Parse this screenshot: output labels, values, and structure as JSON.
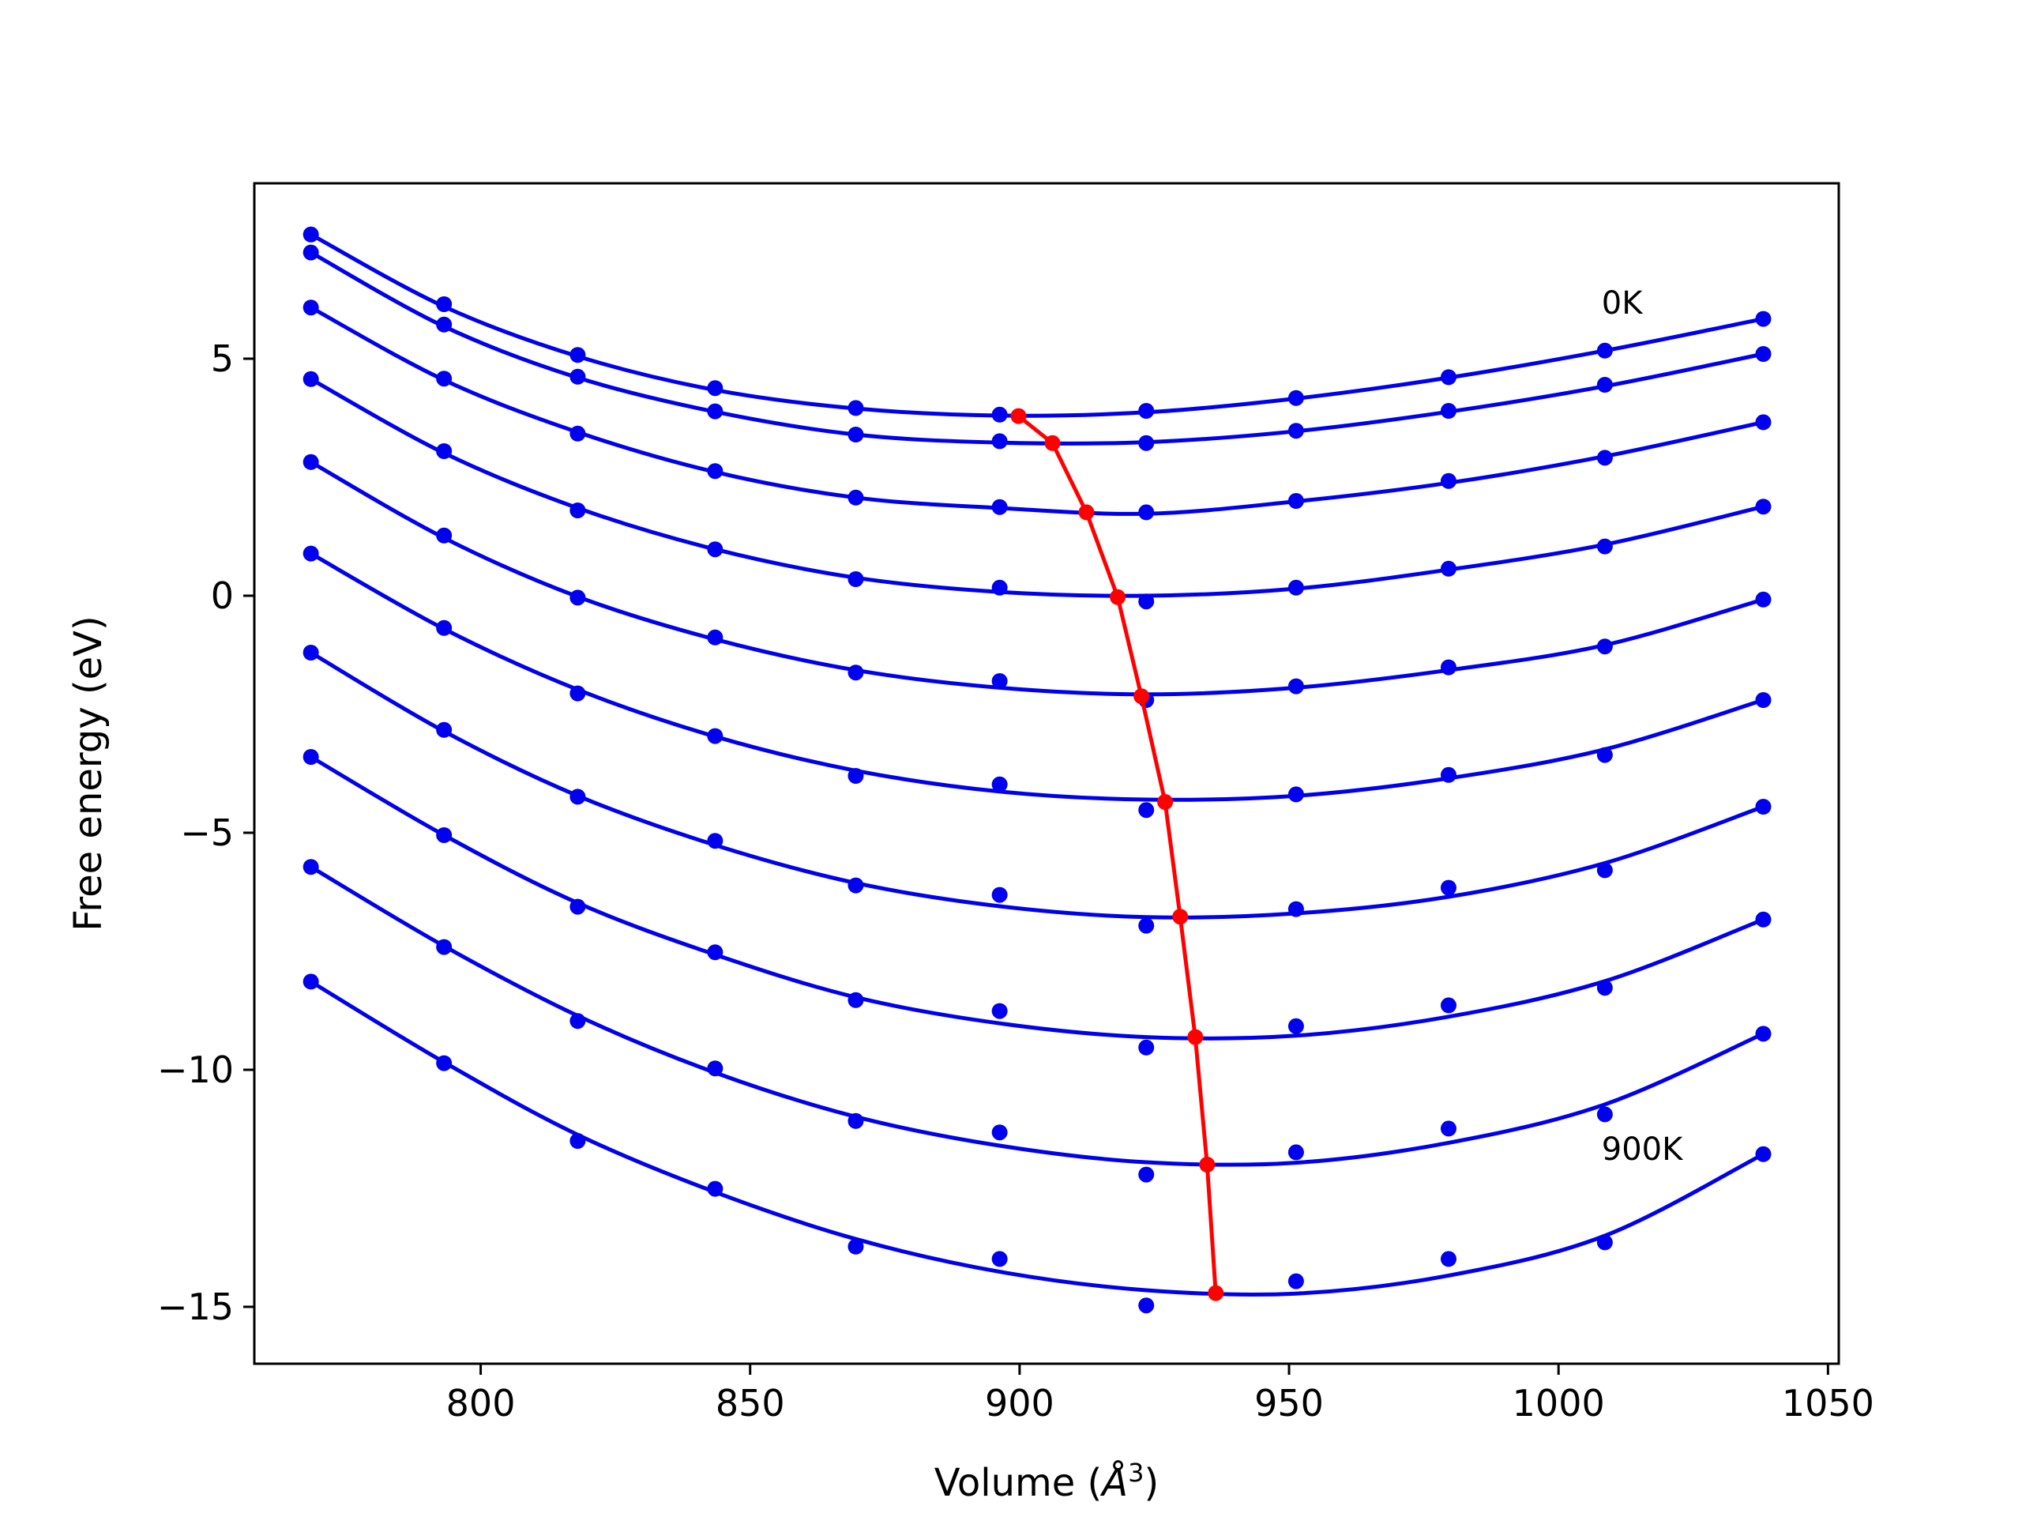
{
  "chart_data": {
    "type": "scatter",
    "xlabel": "Volume (",
    "xlabel_unit_base": "Å",
    "xlabel_unit_exp": "3",
    "xlabel_suffix": ")",
    "ylabel": "Free energy (eV)",
    "xlim": [
      758,
      1052
    ],
    "ylim": [
      -16.2,
      8.7
    ],
    "xticks": [
      800,
      850,
      900,
      950,
      1000,
      1050
    ],
    "yticks": [
      5,
      0,
      -5,
      -10,
      -15
    ],
    "ytick_labels": [
      "5",
      "0",
      "−5",
      "−10",
      "−15"
    ],
    "grid": false,
    "legend": "none",
    "colors": {
      "curves": "#0000ee",
      "minima": "#ff0000"
    },
    "x": [
      768.5,
      793.2,
      818.0,
      843.5,
      869.6,
      896.3,
      923.5,
      951.3,
      979.6,
      1008.6,
      1038.0
    ],
    "series": [
      {
        "y": [
          7.62,
          6.15,
          5.08,
          4.38,
          3.96,
          3.82,
          3.9,
          4.17,
          4.61,
          5.17,
          5.84
        ]
      },
      {
        "y": [
          7.24,
          5.72,
          4.62,
          3.89,
          3.4,
          3.26,
          3.22,
          3.48,
          3.9,
          4.45,
          5.1
        ]
      },
      {
        "y": [
          6.08,
          4.58,
          3.42,
          2.63,
          2.07,
          1.87,
          1.76,
          2.0,
          2.42,
          2.91,
          3.66
        ]
      },
      {
        "y": [
          4.57,
          3.05,
          1.8,
          0.98,
          0.35,
          0.17,
          -0.12,
          0.17,
          0.57,
          1.04,
          1.88
        ]
      },
      {
        "y": [
          2.82,
          1.27,
          -0.04,
          -0.88,
          -1.62,
          -1.8,
          -2.2,
          -1.91,
          -1.51,
          -1.07,
          -0.08
        ]
      },
      {
        "y": [
          0.89,
          -0.68,
          -2.06,
          -2.96,
          -3.8,
          -3.98,
          -4.52,
          -4.19,
          -3.78,
          -3.36,
          -2.2
        ]
      },
      {
        "y": [
          -1.2,
          -2.83,
          -4.24,
          -5.17,
          -6.11,
          -6.31,
          -6.96,
          -6.61,
          -6.16,
          -5.79,
          -4.45
        ]
      },
      {
        "y": [
          -3.4,
          -5.05,
          -6.56,
          -7.52,
          -8.53,
          -8.76,
          -9.53,
          -9.08,
          -8.64,
          -8.27,
          -6.83
        ]
      },
      {
        "y": [
          -5.72,
          -7.41,
          -8.97,
          -9.97,
          -11.08,
          -11.32,
          -12.21,
          -11.74,
          -11.24,
          -10.94,
          -9.24
        ]
      },
      {
        "y": [
          -8.14,
          -9.86,
          -11.5,
          -12.51,
          -13.73,
          -13.99,
          -14.97,
          -14.46,
          -13.99,
          -13.64,
          -11.78
        ]
      }
    ],
    "curves": [
      {
        "y": [
          7.62,
          6.1,
          5.05,
          4.34,
          3.95,
          3.8,
          3.87,
          4.16,
          4.6,
          5.17,
          5.84
        ]
      },
      {
        "y": [
          7.24,
          5.68,
          4.6,
          3.88,
          3.4,
          3.23,
          3.24,
          3.47,
          3.88,
          4.42,
          5.1
        ]
      },
      {
        "y": [
          6.08,
          4.55,
          3.45,
          2.61,
          2.07,
          1.85,
          1.73,
          1.99,
          2.38,
          2.94,
          3.66
        ]
      },
      {
        "y": [
          4.57,
          3.01,
          1.85,
          0.98,
          0.38,
          0.08,
          0.0,
          0.15,
          0.55,
          1.08,
          1.88
        ]
      },
      {
        "y": [
          2.82,
          1.22,
          -0.02,
          -0.92,
          -1.57,
          -1.94,
          -2.08,
          -1.94,
          -1.57,
          -1.04,
          -0.08
        ]
      },
      {
        "y": [
          0.89,
          -0.7,
          -1.98,
          -2.97,
          -3.69,
          -4.13,
          -4.3,
          -4.22,
          -3.85,
          -3.24,
          -2.2
        ]
      },
      {
        "y": [
          -1.2,
          -2.86,
          -4.22,
          -5.26,
          -6.06,
          -6.55,
          -6.78,
          -6.7,
          -6.35,
          -5.64,
          -4.45
        ]
      },
      {
        "y": [
          -3.4,
          -5.05,
          -6.48,
          -7.57,
          -8.47,
          -9.02,
          -9.31,
          -9.28,
          -8.88,
          -8.13,
          -6.83
        ]
      },
      {
        "y": [
          -5.72,
          -7.39,
          -8.86,
          -10.06,
          -10.99,
          -11.6,
          -11.95,
          -11.96,
          -11.54,
          -10.73,
          -9.24
        ]
      },
      {
        "y": [
          -8.14,
          -9.84,
          -11.37,
          -12.58,
          -13.57,
          -14.26,
          -14.65,
          -14.72,
          -14.34,
          -13.5,
          -11.78
        ]
      }
    ],
    "minima": {
      "x": [
        899.8,
        906.1,
        912.4,
        918.2,
        922.6,
        927.0,
        929.8,
        932.6,
        934.8,
        936.4
      ],
      "y": [
        3.79,
        3.22,
        1.76,
        -0.03,
        -2.12,
        -4.35,
        -6.77,
        -9.31,
        -12.0,
        -14.71
      ]
    },
    "annotations": [
      {
        "text": "0K",
        "x": 1008,
        "y": 5.95
      },
      {
        "text": "900K",
        "x": 1008,
        "y": -11.9
      }
    ]
  }
}
